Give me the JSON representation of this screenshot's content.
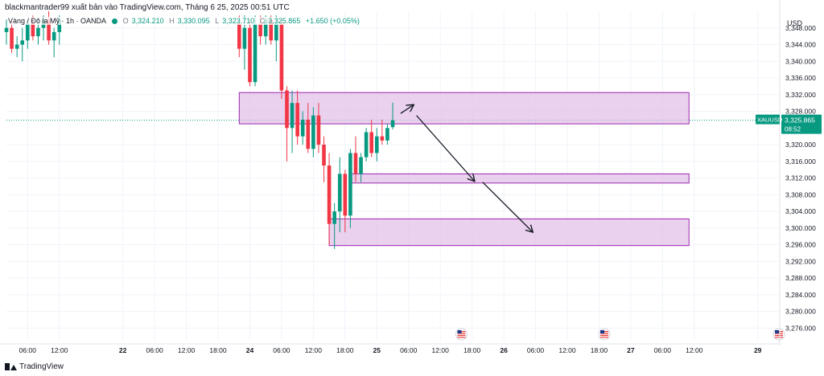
{
  "header": {
    "attribution": "blackmantrader99 xuất bản vào TradingView.com, Tháng 6 25, 2025 00:51 UTC"
  },
  "legend": {
    "symbol_desc": "Vàng / Đô la Mỹ · 1h · OANDA",
    "open_label": "O",
    "open": "3,324.210",
    "high_label": "H",
    "high": "3,330.095",
    "low_label": "L",
    "low": "3,323.710",
    "close_label": "C",
    "close": "3,325.865",
    "change": "+1.650 (+0.05%)"
  },
  "footer": {
    "brand": "TradingView"
  },
  "colors": {
    "up": "#089981",
    "down": "#f23645",
    "zone_fill": "#e1bee7",
    "zone_stroke": "#9c27b0",
    "current_price": "#089981",
    "arrow": "#131722"
  },
  "chart_data": {
    "type": "candlestick",
    "symbol": "XAUUSD",
    "currency": "USD",
    "current_price": "3,325.865",
    "countdown": "08:52",
    "ylim": [
      3273,
      3352
    ],
    "y_ticks": [
      3348,
      3344,
      3340,
      3336,
      3332,
      3328,
      3320,
      3316,
      3312,
      3308,
      3304,
      3300,
      3296,
      3292,
      3288,
      3284,
      3280,
      3276
    ],
    "y_tick_labels": [
      "3,348.000",
      "3,344.000",
      "3,340.000",
      "3,336.000",
      "3,332.000",
      "3,328.000",
      "3,320.000",
      "3,316.000",
      "3,312.000",
      "3,308.000",
      "3,304.000",
      "3,300.000",
      "3,296.000",
      "3,292.000",
      "3,288.000",
      "3,284.000",
      "3,280.000",
      "3,276.000"
    ],
    "x_ticks": [
      {
        "t": 6,
        "label": "06:00"
      },
      {
        "t": 12,
        "label": "12:00"
      },
      {
        "t": 24,
        "label": "22"
      },
      {
        "t": 30,
        "label": "06:00"
      },
      {
        "t": 36,
        "label": "12:00"
      },
      {
        "t": 42,
        "label": "18:00"
      },
      {
        "t": 48,
        "label": "24"
      },
      {
        "t": 54,
        "label": "06:00"
      },
      {
        "t": 60,
        "label": "12:00"
      },
      {
        "t": 66,
        "label": "18:00"
      },
      {
        "t": 72,
        "label": "25"
      },
      {
        "t": 78,
        "label": "06:00"
      },
      {
        "t": 84,
        "label": "12:00"
      },
      {
        "t": 90,
        "label": "18:00"
      },
      {
        "t": 96,
        "label": "26"
      },
      {
        "t": 102,
        "label": "06:00"
      },
      {
        "t": 108,
        "label": "12:00"
      },
      {
        "t": 114,
        "label": "18:00"
      },
      {
        "t": 120,
        "label": "27"
      },
      {
        "t": 126,
        "label": "06:00"
      },
      {
        "t": 132,
        "label": "12:00"
      },
      {
        "t": 144,
        "label": "29"
      }
    ],
    "x_bold": [
      24,
      48,
      72,
      96,
      120,
      144
    ],
    "x_range": [
      2,
      148
    ],
    "candles": [
      {
        "t": 2,
        "o": 3347,
        "h": 3350,
        "l": 3344,
        "c": 3348
      },
      {
        "t": 3,
        "o": 3348,
        "h": 3350,
        "l": 3342,
        "c": 3343
      },
      {
        "t": 4,
        "o": 3343,
        "h": 3346,
        "l": 3341,
        "c": 3344
      },
      {
        "t": 5,
        "o": 3344,
        "h": 3348,
        "l": 3340,
        "c": 3345
      },
      {
        "t": 6,
        "o": 3345,
        "h": 3350,
        "l": 3343,
        "c": 3349
      },
      {
        "t": 7,
        "o": 3349,
        "h": 3351,
        "l": 3345,
        "c": 3346
      },
      {
        "t": 8,
        "o": 3346,
        "h": 3350,
        "l": 3344,
        "c": 3348
      },
      {
        "t": 9,
        "o": 3348,
        "h": 3351,
        "l": 3345,
        "c": 3350
      },
      {
        "t": 10,
        "o": 3350,
        "h": 3352,
        "l": 3344,
        "c": 3345
      },
      {
        "t": 11,
        "o": 3345,
        "h": 3348,
        "l": 3341,
        "c": 3347
      },
      {
        "t": 12,
        "o": 3347,
        "h": 3351,
        "l": 3344,
        "c": 3350
      },
      {
        "t": 46,
        "o": 3349,
        "h": 3351,
        "l": 3341,
        "c": 3343
      },
      {
        "t": 47,
        "o": 3343,
        "h": 3351,
        "l": 3338,
        "c": 3348
      },
      {
        "t": 48,
        "o": 3348,
        "h": 3350,
        "l": 3334,
        "c": 3335
      },
      {
        "t": 49,
        "o": 3335,
        "h": 3351,
        "l": 3334,
        "c": 3349
      },
      {
        "t": 50,
        "o": 3349,
        "h": 3351,
        "l": 3344,
        "c": 3346
      },
      {
        "t": 51,
        "o": 3346,
        "h": 3351,
        "l": 3344,
        "c": 3350
      },
      {
        "t": 52,
        "o": 3350,
        "h": 3351,
        "l": 3344,
        "c": 3345
      },
      {
        "t": 53,
        "o": 3345,
        "h": 3351,
        "l": 3340,
        "c": 3349
      },
      {
        "t": 54,
        "o": 3349,
        "h": 3350,
        "l": 3331,
        "c": 3333
      },
      {
        "t": 55,
        "o": 3333,
        "h": 3334,
        "l": 3316,
        "c": 3324
      },
      {
        "t": 56,
        "o": 3324,
        "h": 3333,
        "l": 3318,
        "c": 3330
      },
      {
        "t": 57,
        "o": 3330,
        "h": 3333,
        "l": 3320,
        "c": 3322
      },
      {
        "t": 58,
        "o": 3322,
        "h": 3328,
        "l": 3320,
        "c": 3326
      },
      {
        "t": 59,
        "o": 3326,
        "h": 3330,
        "l": 3318,
        "c": 3319
      },
      {
        "t": 60,
        "o": 3319,
        "h": 3329,
        "l": 3317,
        "c": 3327
      },
      {
        "t": 61,
        "o": 3327,
        "h": 3330,
        "l": 3318,
        "c": 3320
      },
      {
        "t": 62,
        "o": 3320,
        "h": 3322,
        "l": 3311,
        "c": 3315
      },
      {
        "t": 63,
        "o": 3315,
        "h": 3318,
        "l": 3296,
        "c": 3301
      },
      {
        "t": 64,
        "o": 3301,
        "h": 3306,
        "l": 3295,
        "c": 3304
      },
      {
        "t": 65,
        "o": 3304,
        "h": 3317,
        "l": 3299,
        "c": 3313
      },
      {
        "t": 66,
        "o": 3313,
        "h": 3314,
        "l": 3299,
        "c": 3303
      },
      {
        "t": 67,
        "o": 3303,
        "h": 3319,
        "l": 3300,
        "c": 3318
      },
      {
        "t": 68,
        "o": 3318,
        "h": 3322,
        "l": 3311,
        "c": 3313
      },
      {
        "t": 69,
        "o": 3313,
        "h": 3318,
        "l": 3311,
        "c": 3317
      },
      {
        "t": 70,
        "o": 3317,
        "h": 3324,
        "l": 3316,
        "c": 3323
      },
      {
        "t": 71,
        "o": 3323,
        "h": 3326,
        "l": 3317,
        "c": 3318
      },
      {
        "t": 72,
        "o": 3318,
        "h": 3324,
        "l": 3316,
        "c": 3322
      },
      {
        "t": 73,
        "o": 3322,
        "h": 3326,
        "l": 3320,
        "c": 3321
      },
      {
        "t": 74,
        "o": 3321,
        "h": 3325,
        "l": 3320,
        "c": 3324
      },
      {
        "t": 75,
        "o": 3324.21,
        "h": 3330.095,
        "l": 3323.71,
        "c": 3325.865
      }
    ],
    "zones": [
      {
        "t0": 46,
        "t1": 131,
        "top": 3332.5,
        "bottom": 3325.0
      },
      {
        "t0": 67,
        "t1": 131,
        "top": 3313.0,
        "bottom": 3310.8
      },
      {
        "t0": 63,
        "t1": 131,
        "top": 3302.2,
        "bottom": 3295.8
      }
    ],
    "arrows": [
      {
        "t0": 76.5,
        "p0": 3327.5,
        "t1": 79.0,
        "p1": 3329.6
      },
      {
        "t0": 79.5,
        "p0": 3327.0,
        "t1": 90.5,
        "p1": 3311.2
      },
      {
        "t0": 92.0,
        "p0": 3311.0,
        "t1": 101.5,
        "p1": 3299.0
      }
    ],
    "event_markers": [
      88,
      115,
      148
    ]
  }
}
